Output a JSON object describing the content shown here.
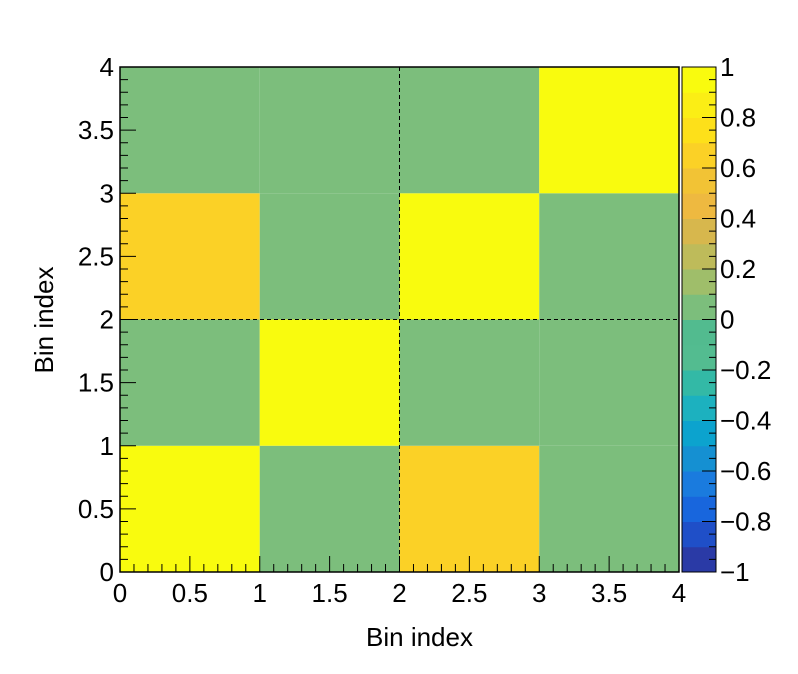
{
  "chart_data": {
    "type": "heatmap",
    "xlabel": "Bin index",
    "ylabel": "Bin index",
    "xlim": [
      0,
      4
    ],
    "ylim": [
      0,
      4
    ],
    "x_ticks": [
      "0",
      "0.5",
      "1",
      "1.5",
      "2",
      "2.5",
      "3",
      "3.5",
      "4"
    ],
    "y_ticks": [
      "0",
      "0.5",
      "1",
      "1.5",
      "2",
      "2.5",
      "3",
      "3.5",
      "4"
    ],
    "x_bin_edges": [
      0,
      1,
      2,
      3,
      4
    ],
    "y_bin_edges": [
      0,
      1,
      2,
      3,
      4
    ],
    "z_rows_bottom_to_top": [
      [
        1,
        0,
        0.6,
        0
      ],
      [
        0,
        1,
        0,
        0
      ],
      [
        0.6,
        0,
        1,
        0
      ],
      [
        0,
        0,
        0,
        1
      ]
    ],
    "zlim": [
      -1,
      1
    ],
    "colorbar_ticks": [
      "1",
      "0.8",
      "0.6",
      "0.4",
      "0.2",
      "0",
      "−0.2",
      "−0.4",
      "−0.6",
      "−0.8",
      "−1"
    ],
    "colorbar_colors_bottom_to_top": [
      "#2a3aa6",
      "#1f4fc8",
      "#1866dd",
      "#1a7bde",
      "#1590d2",
      "#0ca3ce",
      "#1cb1bf",
      "#33b9a6",
      "#53bc90",
      "#52bb8f",
      "#7cbe7c",
      "#9fbe6a",
      "#bebb5a",
      "#d7b74d",
      "#eeb940",
      "#f2c335",
      "#fbd126",
      "#fde01a",
      "#fbee15",
      "#f9fb0e"
    ],
    "grid": false,
    "dashed_divider_lines": {
      "x": [
        2
      ],
      "y": [
        2
      ]
    }
  }
}
